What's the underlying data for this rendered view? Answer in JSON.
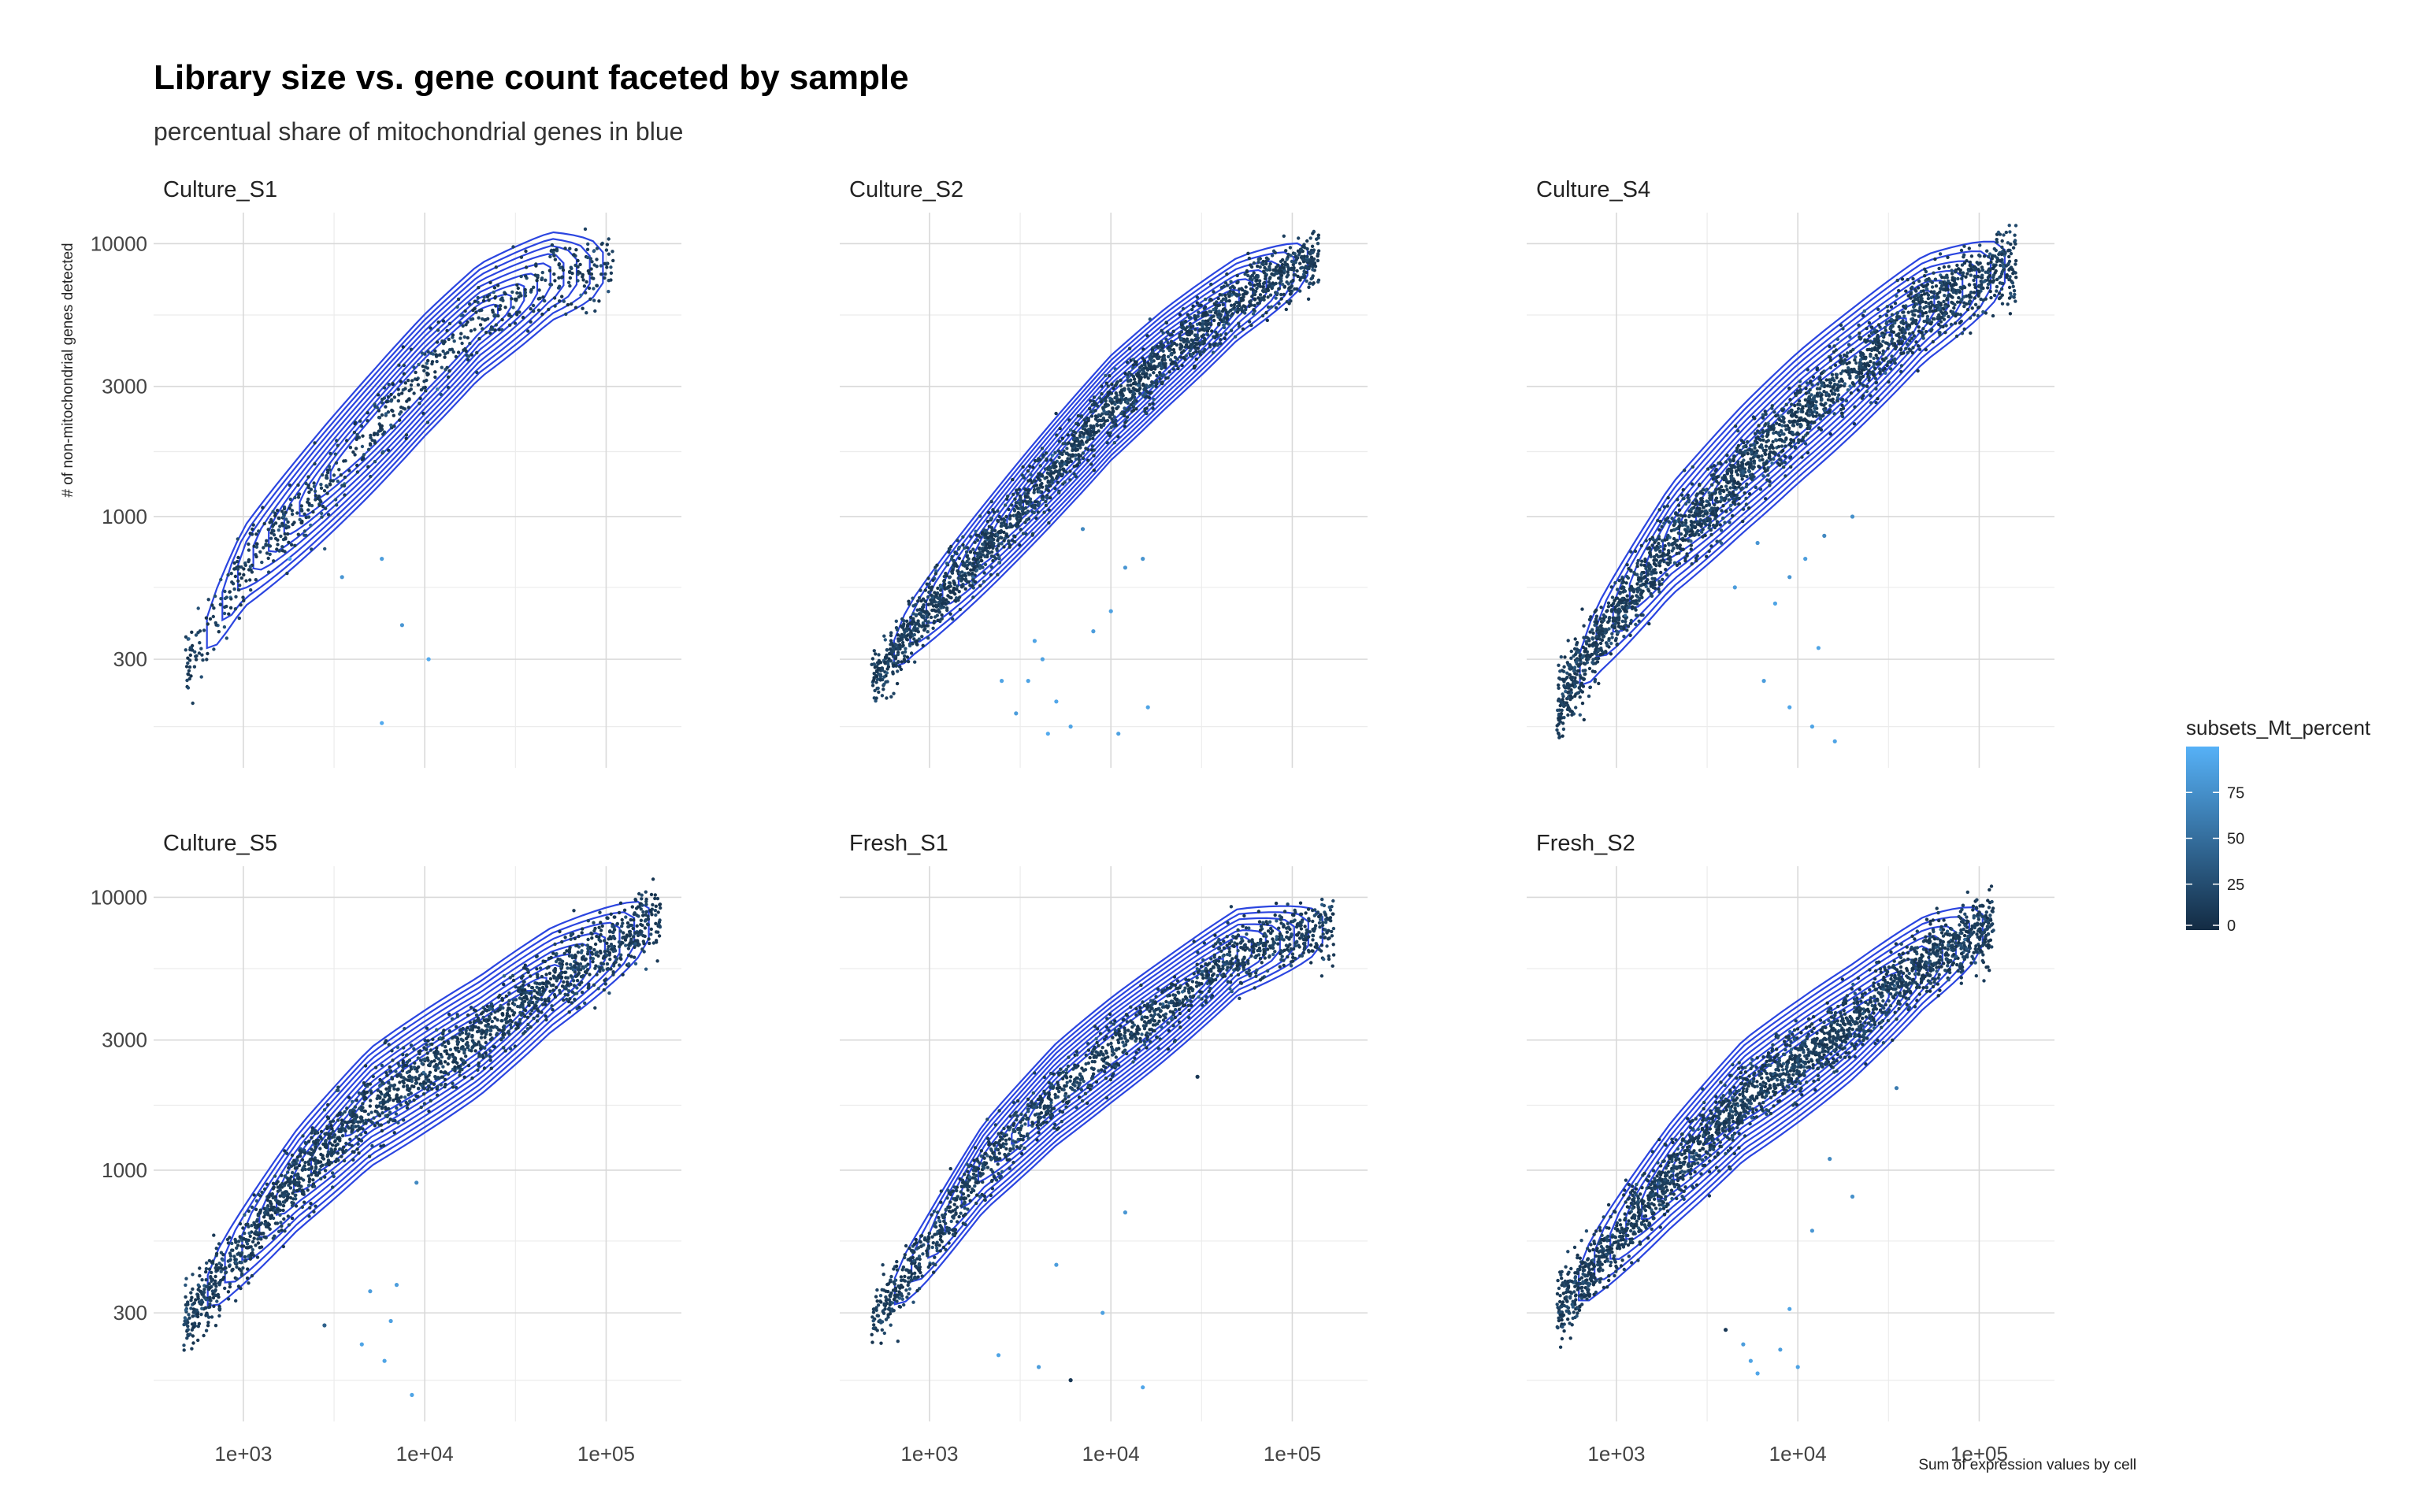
{
  "title": "Library size vs. gene count faceted by sample",
  "subtitle": "percentual share of mitochondrial genes in blue",
  "chart_data": {
    "type": "scatter",
    "x_label": "Sum of expression values by cell",
    "y_label": "# of non-mitochondrial genes detected",
    "x_scale": "log10",
    "y_scale": "log10",
    "x_ticks": [
      "1e+03",
      "1e+04",
      "1e+05"
    ],
    "y_ticks": [
      "300",
      "1000",
      "3000",
      "10000"
    ],
    "x_range": [
      320,
      260000
    ],
    "y_range": [
      120,
      13000
    ],
    "grid": true,
    "density_contours": true,
    "color": {
      "variable": "subsets_Mt_percent",
      "low": "#132b43",
      "high": "#56b1f7",
      "range": [
        0,
        100
      ],
      "legend_ticks": [
        "75",
        "50",
        "25",
        "0"
      ],
      "legend_position": "right"
    },
    "contour_color": "#2b45e0",
    "panels": [
      {
        "name": "Culture_S1",
        "n_points": 750,
        "ridge": [
          [
            480,
            280
          ],
          [
            700,
            420
          ],
          [
            1000,
            650
          ],
          [
            2000,
            1050
          ],
          [
            5000,
            2000
          ],
          [
            10000,
            3300
          ],
          [
            20000,
            5200
          ],
          [
            50000,
            7600
          ],
          [
            110000,
            8300
          ]
        ],
        "spread": 0.07,
        "outliers": [
          [
            1800,
            700,
            90
          ],
          [
            3500,
            600,
            80
          ],
          [
            5800,
            700,
            85
          ],
          [
            7500,
            400,
            80
          ],
          [
            10500,
            300,
            95
          ],
          [
            5800,
            175,
            95
          ]
        ]
      },
      {
        "name": "Culture_S2",
        "n_points": 2100,
        "ridge": [
          [
            480,
            240
          ],
          [
            800,
            390
          ],
          [
            2000,
            760
          ],
          [
            5000,
            1500
          ],
          [
            10000,
            2500
          ],
          [
            20000,
            3800
          ],
          [
            50000,
            6300
          ],
          [
            140000,
            9000
          ]
        ],
        "spread": 0.06,
        "outliers": [
          [
            2500,
            250,
            90
          ],
          [
            3000,
            190,
            85
          ],
          [
            3500,
            250,
            90
          ],
          [
            4200,
            300,
            88
          ],
          [
            5000,
            210,
            92
          ],
          [
            6000,
            170,
            90
          ],
          [
            8000,
            380,
            85
          ],
          [
            12000,
            650,
            80
          ],
          [
            15000,
            700,
            78
          ],
          [
            10000,
            450,
            88
          ],
          [
            7000,
            900,
            70
          ],
          [
            16000,
            200,
            90
          ],
          [
            11000,
            160,
            88
          ],
          [
            4500,
            160,
            95
          ],
          [
            3800,
            350,
            90
          ]
        ]
      },
      {
        "name": "Culture_S4",
        "n_points": 2400,
        "ridge": [
          [
            470,
            200
          ],
          [
            800,
            360
          ],
          [
            2000,
            820
          ],
          [
            5000,
            1500
          ],
          [
            10000,
            2300
          ],
          [
            20000,
            3400
          ],
          [
            50000,
            5800
          ],
          [
            160000,
            8700
          ]
        ],
        "spread": 0.075,
        "outliers": [
          [
            4500,
            550,
            85
          ],
          [
            6000,
            800,
            80
          ],
          [
            7500,
            480,
            90
          ],
          [
            9000,
            600,
            80
          ],
          [
            11000,
            700,
            85
          ],
          [
            14000,
            850,
            70
          ],
          [
            13000,
            330,
            90
          ],
          [
            9000,
            200,
            92
          ],
          [
            12000,
            170,
            90
          ],
          [
            16000,
            150,
            90
          ],
          [
            20000,
            1000,
            75
          ],
          [
            6500,
            250,
            85
          ]
        ]
      },
      {
        "name": "Culture_S5",
        "n_points": 2000,
        "ridge": [
          [
            470,
            280
          ],
          [
            800,
            440
          ],
          [
            2000,
            930
          ],
          [
            5000,
            1700
          ],
          [
            10000,
            2300
          ],
          [
            20000,
            3100
          ],
          [
            50000,
            5000
          ],
          [
            200000,
            8500
          ]
        ],
        "spread": 0.07,
        "outliers": [
          [
            4500,
            230,
            90
          ],
          [
            5000,
            360,
            85
          ],
          [
            6000,
            200,
            90
          ],
          [
            6500,
            280,
            88
          ],
          [
            7000,
            380,
            85
          ],
          [
            8500,
            150,
            90
          ],
          [
            2800,
            270,
            40
          ],
          [
            9000,
            900,
            70
          ]
        ]
      },
      {
        "name": "Fresh_S1",
        "n_points": 1500,
        "ridge": [
          [
            480,
            280
          ],
          [
            900,
            480
          ],
          [
            2000,
            1030
          ],
          [
            5000,
            1900
          ],
          [
            10000,
            2750
          ],
          [
            20000,
            3900
          ],
          [
            50000,
            6300
          ],
          [
            170000,
            7800
          ]
        ],
        "spread": 0.06,
        "outliers": [
          [
            2400,
            210,
            90
          ],
          [
            4000,
            190,
            85
          ],
          [
            6000,
            170,
            10
          ],
          [
            15000,
            160,
            92
          ],
          [
            9000,
            300,
            88
          ],
          [
            30000,
            2200,
            10
          ],
          [
            12000,
            700,
            80
          ],
          [
            5000,
            450,
            85
          ]
        ]
      },
      {
        "name": "Fresh_S2",
        "n_points": 2300,
        "ridge": [
          [
            470,
            300
          ],
          [
            800,
            470
          ],
          [
            2000,
            960
          ],
          [
            5000,
            1800
          ],
          [
            10000,
            2500
          ],
          [
            20000,
            3500
          ],
          [
            50000,
            5800
          ],
          [
            120000,
            8000
          ]
        ],
        "spread": 0.07,
        "outliers": [
          [
            4000,
            260,
            10
          ],
          [
            5000,
            230,
            85
          ],
          [
            5500,
            200,
            90
          ],
          [
            6000,
            180,
            92
          ],
          [
            8000,
            220,
            85
          ],
          [
            9000,
            310,
            90
          ],
          [
            10000,
            190,
            90
          ],
          [
            12000,
            600,
            80
          ],
          [
            15000,
            1100,
            70
          ],
          [
            20000,
            800,
            75
          ],
          [
            35000,
            2000,
            60
          ]
        ]
      }
    ]
  }
}
